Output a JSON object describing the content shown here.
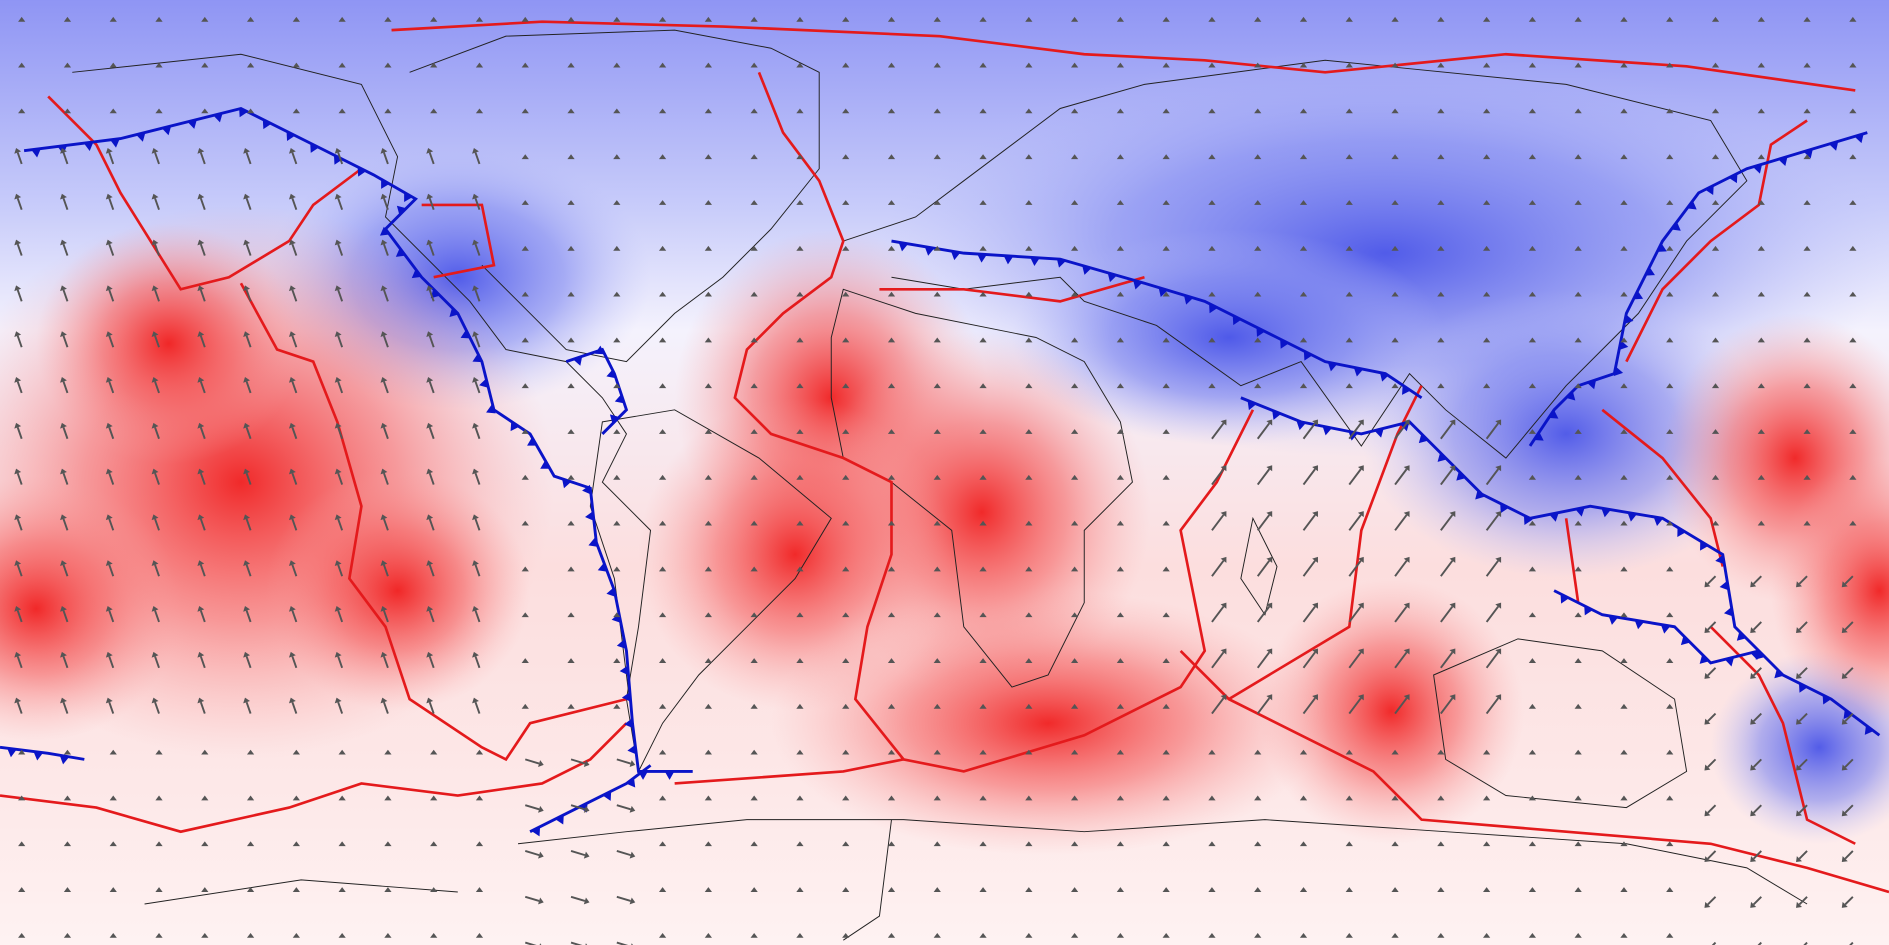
{
  "map": {
    "ridge_color": "#e41a1c",
    "trench_color": "#0a14c8",
    "coast_color": "#222222",
    "arrow_color": "#555555"
  }
}
